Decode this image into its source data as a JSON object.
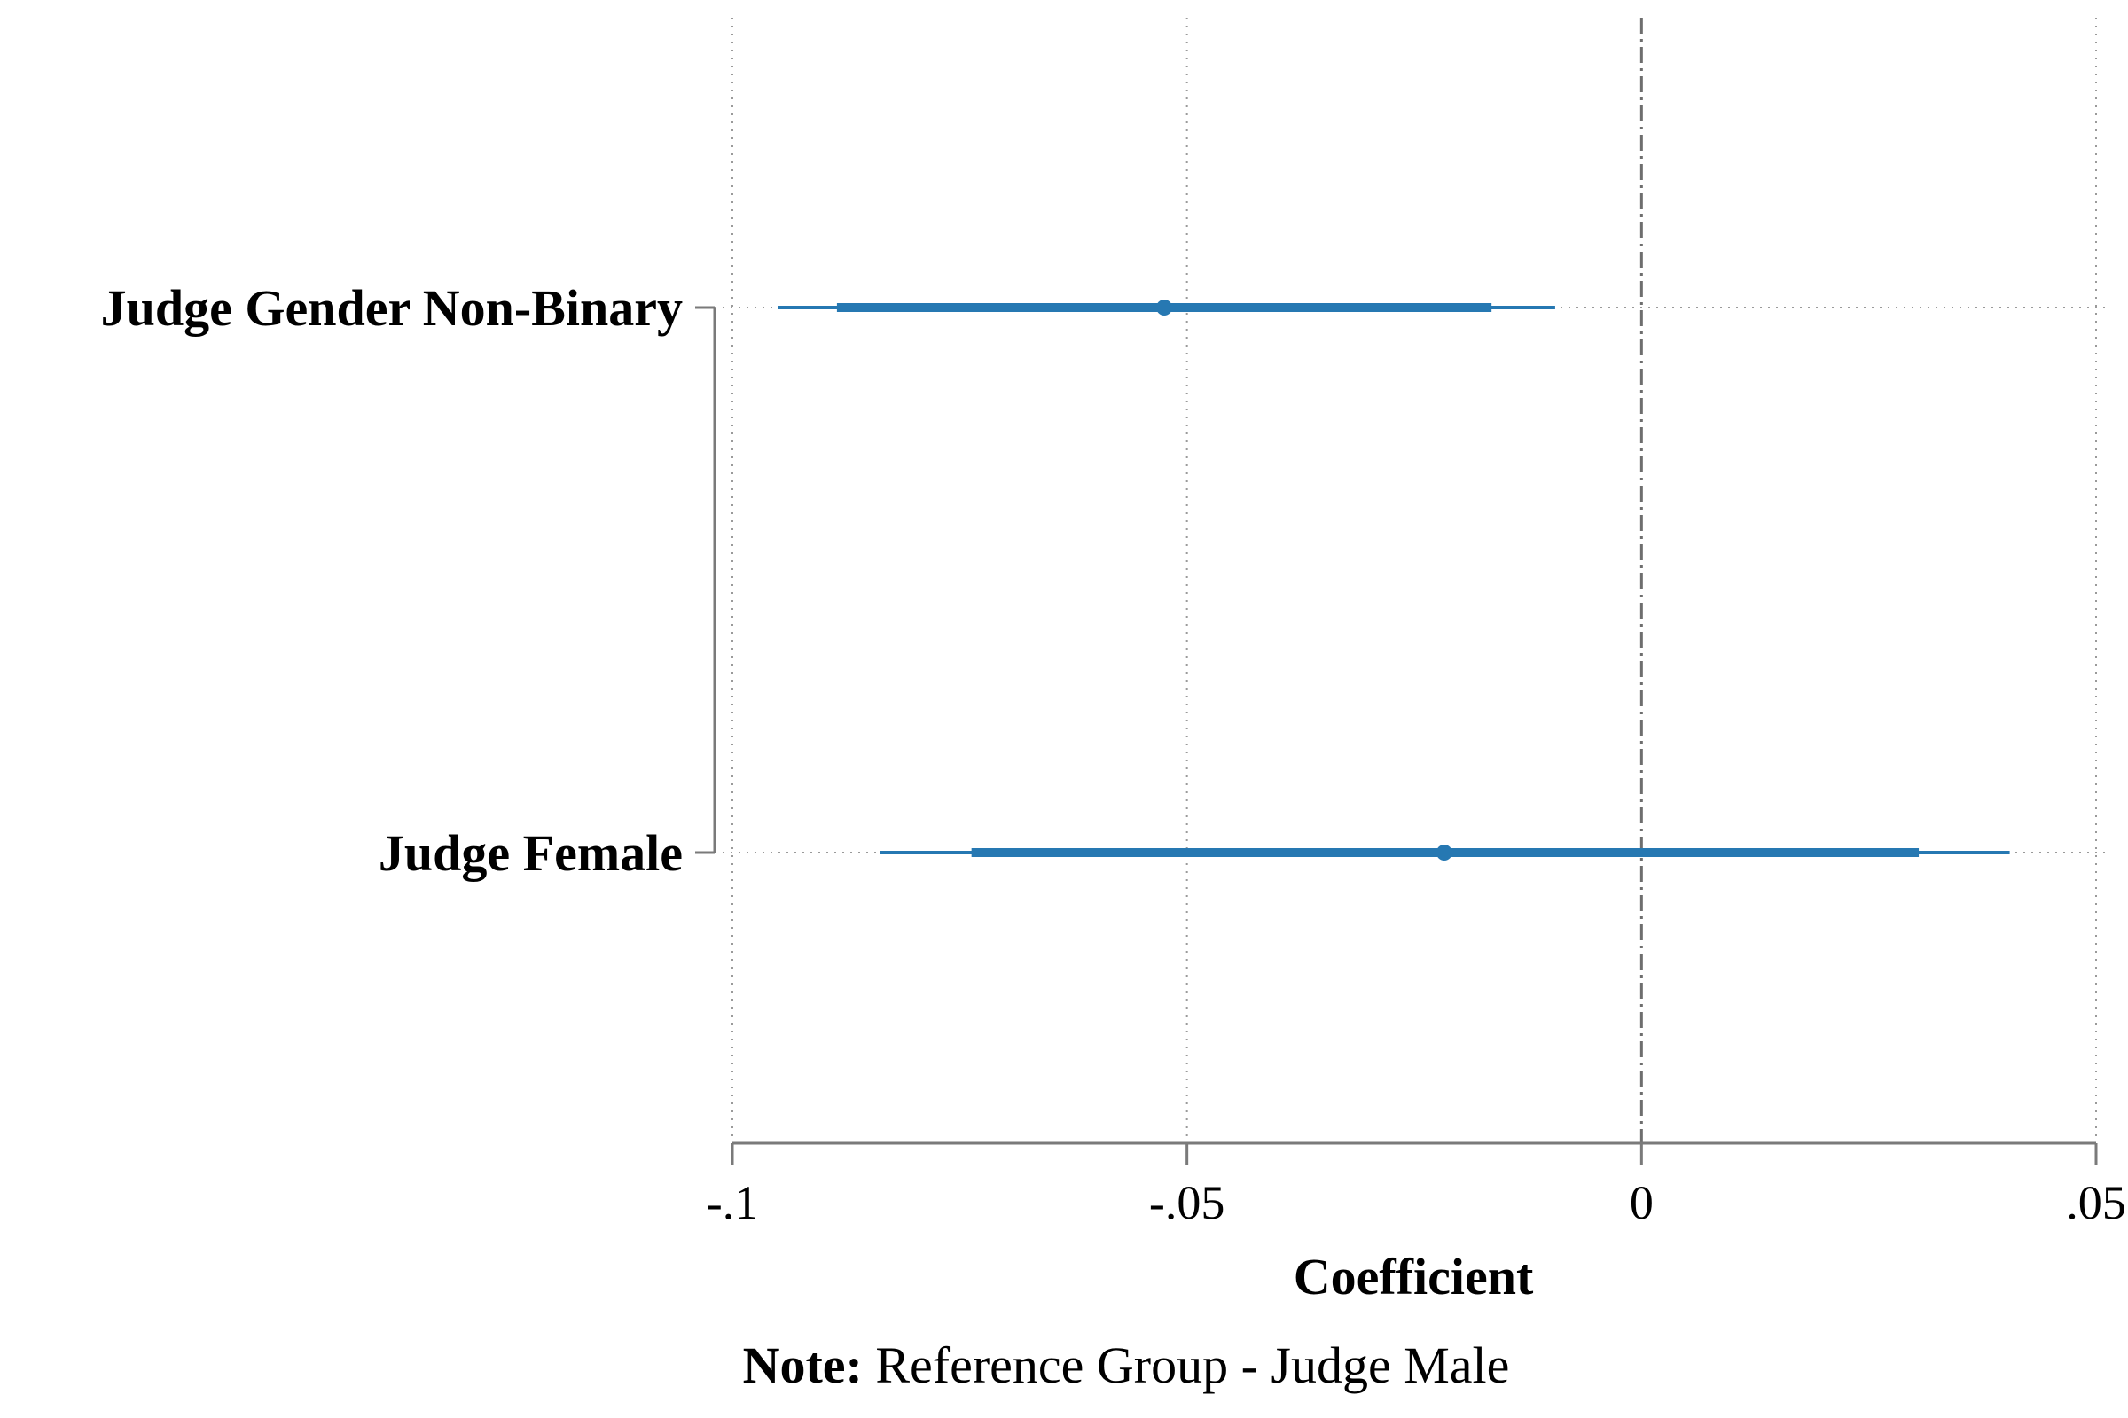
{
  "chart_data": {
    "type": "coefficient_plot",
    "title": "",
    "xlabel": "Coefficient",
    "ylabel": "",
    "xlim": [
      -0.1,
      0.05
    ],
    "x_ticks": [
      {
        "value": -0.1,
        "label": "-.1"
      },
      {
        "value": -0.05,
        "label": "-.05"
      },
      {
        "value": 0,
        "label": "0"
      },
      {
        "value": 0.05,
        "label": ".05"
      }
    ],
    "reference_line": 0,
    "grid": true,
    "color": "#2678b2",
    "series": [
      {
        "label": "Judge Gender Non-Binary",
        "estimate": -0.0525,
        "ci_inner": [
          -0.0885,
          -0.0165
        ],
        "ci_outer": [
          -0.095,
          -0.0095
        ]
      },
      {
        "label": "Judge Female",
        "estimate": -0.0217,
        "ci_inner": [
          -0.0737,
          0.0305
        ],
        "ci_outer": [
          -0.0838,
          0.0405
        ]
      }
    ],
    "note": {
      "bold": "Note:",
      "text": " Reference Group - Judge Male"
    }
  }
}
